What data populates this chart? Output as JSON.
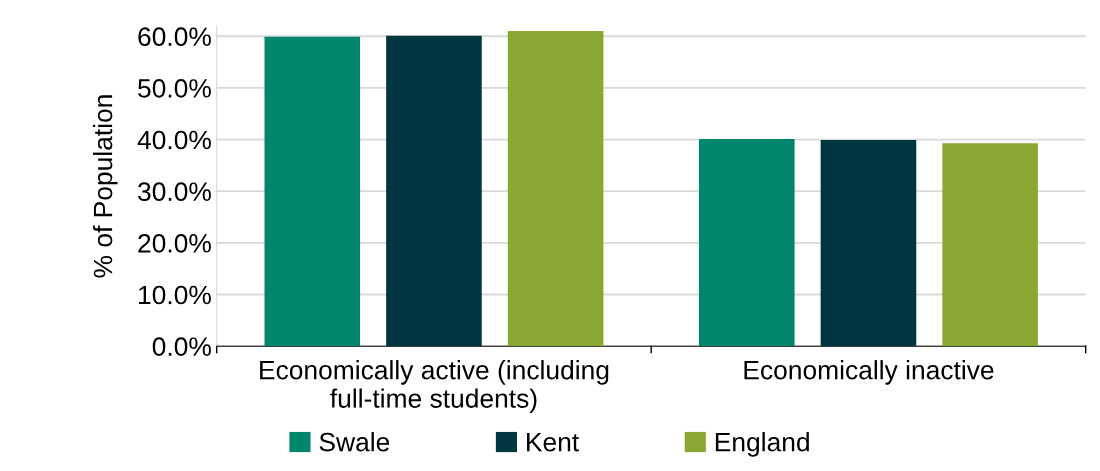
{
  "chart_data": {
    "type": "bar",
    "ylabel": "% of Population",
    "categories": [
      "Economically active (including\nfull-time students)",
      "Economically inactive"
    ],
    "series": [
      {
        "name": "Swale",
        "color": "#00866a",
        "values": [
          59.9,
          40.1
        ]
      },
      {
        "name": "Kent",
        "color": "#00363f",
        "values": [
          60.1,
          39.9
        ]
      },
      {
        "name": "England",
        "color": "#8ba733",
        "values": [
          61.0,
          39.3
        ]
      }
    ],
    "ylim": [
      0,
      62
    ],
    "yticks": [
      {
        "value": 0,
        "label": "0.0%"
      },
      {
        "value": 10,
        "label": "10.0%"
      },
      {
        "value": 20,
        "label": "20.0%"
      },
      {
        "value": 30,
        "label": "30.0%"
      },
      {
        "value": 40,
        "label": "40.0%"
      },
      {
        "value": 50,
        "label": "50.0%"
      },
      {
        "value": 60,
        "label": "60.0%"
      }
    ],
    "grid": "y",
    "legend": "bottom"
  }
}
